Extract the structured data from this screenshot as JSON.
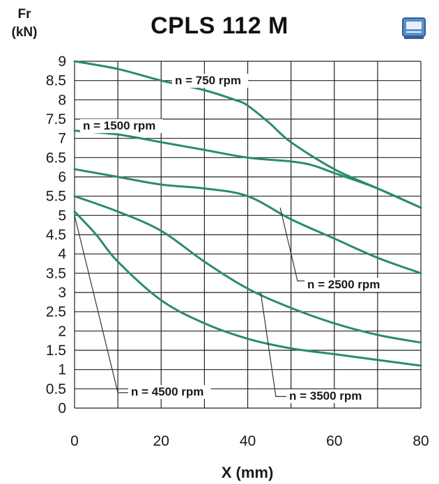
{
  "y_unit_top": "Fr",
  "y_unit_bottom": "(kN)",
  "chart_data": {
    "type": "line",
    "title": "CPLS 112 M",
    "xlabel": "X (mm)",
    "ylabel": "Fr (kN)",
    "xlim": [
      0,
      80
    ],
    "ylim": [
      0,
      9
    ],
    "grid": true,
    "x_ticks": [
      "0",
      "20",
      "40",
      "60",
      "80"
    ],
    "y_ticks": [
      "0",
      "0.5",
      "1",
      "1.5",
      "2",
      "2.5",
      "3",
      "3.5",
      "4",
      "4.5",
      "5",
      "5.5",
      "6",
      "6.5",
      "7",
      "7.5",
      "8",
      "8.5",
      "9"
    ],
    "line_color": "#2a8c68",
    "series": [
      {
        "name": "n = 750 rpm",
        "x": [
          0,
          10,
          20,
          30,
          37,
          40,
          45,
          50,
          60,
          70,
          80
        ],
        "y": [
          9.0,
          8.8,
          8.5,
          8.25,
          8.0,
          7.85,
          7.4,
          6.9,
          6.2,
          5.7,
          5.2
        ]
      },
      {
        "name": "n = 1500 rpm",
        "x": [
          0,
          10,
          20,
          30,
          40,
          50,
          55,
          60,
          70,
          80
        ],
        "y": [
          7.2,
          7.1,
          6.9,
          6.7,
          6.5,
          6.4,
          6.3,
          6.1,
          5.7,
          5.2
        ]
      },
      {
        "name": "n = 2500 rpm",
        "x": [
          0,
          10,
          20,
          30,
          40,
          50,
          60,
          70,
          80
        ],
        "y": [
          6.2,
          6.0,
          5.8,
          5.7,
          5.5,
          4.9,
          4.4,
          3.9,
          3.5
        ]
      },
      {
        "name": "n = 3500 rpm",
        "x": [
          0,
          10,
          20,
          30,
          40,
          50,
          60,
          70,
          80
        ],
        "y": [
          5.5,
          5.1,
          4.6,
          3.8,
          3.1,
          2.6,
          2.2,
          1.9,
          1.7
        ]
      },
      {
        "name": "n = 4500 rpm",
        "x": [
          0,
          5,
          10,
          20,
          30,
          40,
          50,
          60,
          70,
          80
        ],
        "y": [
          5.1,
          4.5,
          3.8,
          2.8,
          2.2,
          1.8,
          1.55,
          1.4,
          1.25,
          1.1
        ]
      }
    ]
  }
}
